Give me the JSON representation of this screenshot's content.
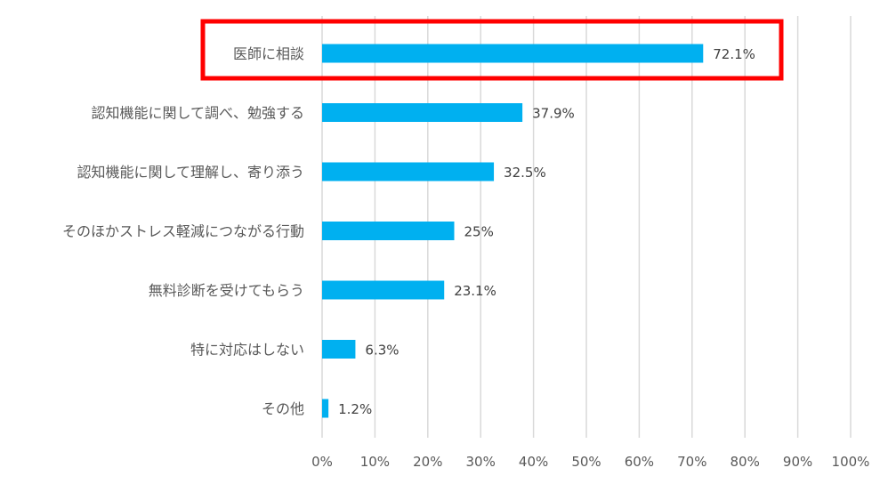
{
  "chart_data": {
    "type": "bar",
    "orientation": "horizontal",
    "categories": [
      "医師に相談",
      "認知機能に関して調べ、勉強する",
      "認知機能に関して理解し、寄り添う",
      "そのほかストレス軽減につながる行動",
      "無料診断を受けてもらう",
      "特に対応はしない",
      "その他"
    ],
    "values": [
      72.1,
      37.9,
      32.5,
      25,
      23.1,
      6.3,
      1.2
    ],
    "value_labels": [
      "72.1%",
      "37.9%",
      "32.5%",
      "25%",
      "23.1%",
      "6.3%",
      "1.2%"
    ],
    "x_ticks": [
      "0%",
      "10%",
      "20%",
      "30%",
      "40%",
      "50%",
      "60%",
      "70%",
      "80%",
      "90%",
      "100%"
    ],
    "xlim": [
      0,
      100
    ],
    "grid": true,
    "legend": "none",
    "bar_color": "#00b0f0",
    "highlight": {
      "category_index": 0,
      "color": "#ff0000"
    }
  }
}
